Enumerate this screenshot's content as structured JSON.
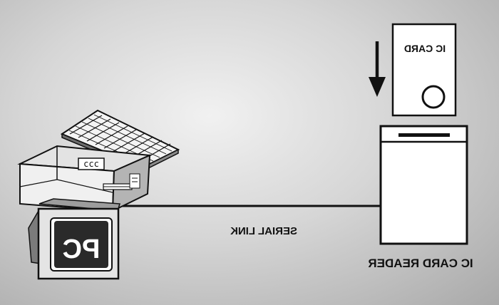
{
  "diagram": {
    "computer_label": "PC",
    "link_label": "SERIAL LINK",
    "card_label": "IC CARD",
    "reader_label": "IC CARD READER",
    "drive_slot_marks": "ccc"
  }
}
